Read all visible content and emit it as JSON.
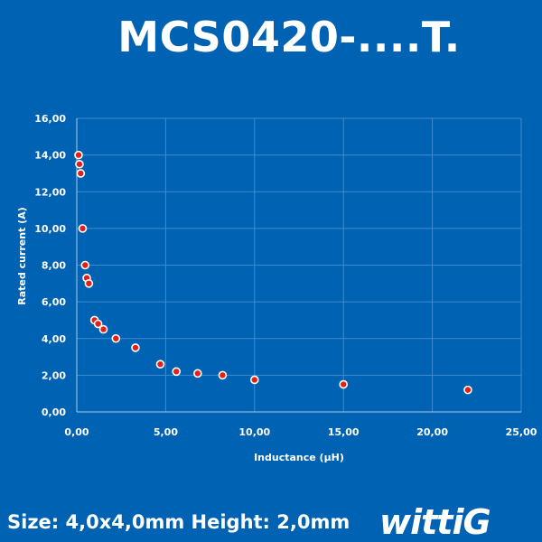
{
  "page": {
    "title": "MCS0420-....T.",
    "footer": "Size: 4,0x4,0mm Height: 2,0mm",
    "logo_text": "wittiG",
    "background": "#0062b3"
  },
  "chart_data": {
    "type": "scatter",
    "title": "MCS0420-....T.",
    "xlabel": "Inductance (µH)",
    "ylabel": "Rated current (A)",
    "xlim": [
      0,
      25
    ],
    "ylim": [
      0,
      16
    ],
    "x_ticks": [
      "0,00",
      "5,00",
      "10,00",
      "15,00",
      "20,00",
      "25,00"
    ],
    "y_ticks": [
      "0,00",
      "2,00",
      "4,00",
      "6,00",
      "8,00",
      "10,00",
      "12,00",
      "14,00",
      "16,00"
    ],
    "grid": true,
    "marker_color": "#e0201b",
    "marker_edge": "#ffffff",
    "points": [
      {
        "x": 0.1,
        "y": 14.0
      },
      {
        "x": 0.15,
        "y": 13.5
      },
      {
        "x": 0.22,
        "y": 13.0
      },
      {
        "x": 0.33,
        "y": 10.0
      },
      {
        "x": 0.47,
        "y": 8.0
      },
      {
        "x": 0.56,
        "y": 7.3
      },
      {
        "x": 0.68,
        "y": 7.0
      },
      {
        "x": 1.0,
        "y": 5.0
      },
      {
        "x": 1.2,
        "y": 4.8
      },
      {
        "x": 1.5,
        "y": 4.5
      },
      {
        "x": 2.2,
        "y": 4.0
      },
      {
        "x": 3.3,
        "y": 3.5
      },
      {
        "x": 4.7,
        "y": 2.6
      },
      {
        "x": 5.6,
        "y": 2.2
      },
      {
        "x": 6.8,
        "y": 2.1
      },
      {
        "x": 8.2,
        "y": 2.0
      },
      {
        "x": 10.0,
        "y": 1.75
      },
      {
        "x": 15.0,
        "y": 1.5
      },
      {
        "x": 22.0,
        "y": 1.2
      }
    ]
  }
}
